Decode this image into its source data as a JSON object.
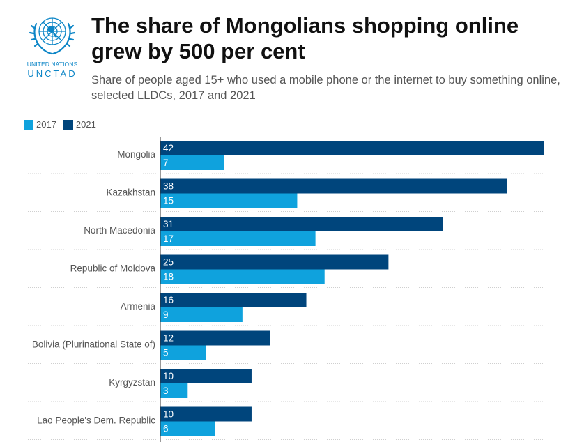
{
  "header": {
    "org_name": "UNITED NATIONS",
    "org_acronym": "UNCTAD",
    "title": "The share of Mongolians shopping online grew by 500 per cent",
    "subtitle": "Share of people aged 15+ who used a mobile phone or the internet to buy something online, selected LLDCs, 2017 and 2021"
  },
  "colors": {
    "series_2021": "#00457c",
    "series_2017": "#0fa2dd",
    "brand": "#0d86c7"
  },
  "chart_data": {
    "type": "bar",
    "orientation": "horizontal",
    "title": "The share of Mongolians shopping online grew by 500 per cent",
    "subtitle": "Share of people aged 15+ who used a mobile phone or the internet to buy something online, selected LLDCs, 2017 and 2021",
    "legend": "top-left",
    "xlim": [
      0,
      42
    ],
    "categories": [
      "Mongolia",
      "Kazakhstan",
      "North Macedonia",
      "Republic of Moldova",
      "Armenia",
      "Bolivia (Plurinational State of)",
      "Kyrgyzstan",
      "Lao People's Dem. Republic"
    ],
    "series": [
      {
        "name": "2021",
        "values": [
          42,
          38,
          31,
          25,
          16,
          12,
          10,
          10
        ]
      },
      {
        "name": "2017",
        "values": [
          7,
          15,
          17,
          18,
          9,
          5,
          3,
          6
        ]
      }
    ]
  }
}
